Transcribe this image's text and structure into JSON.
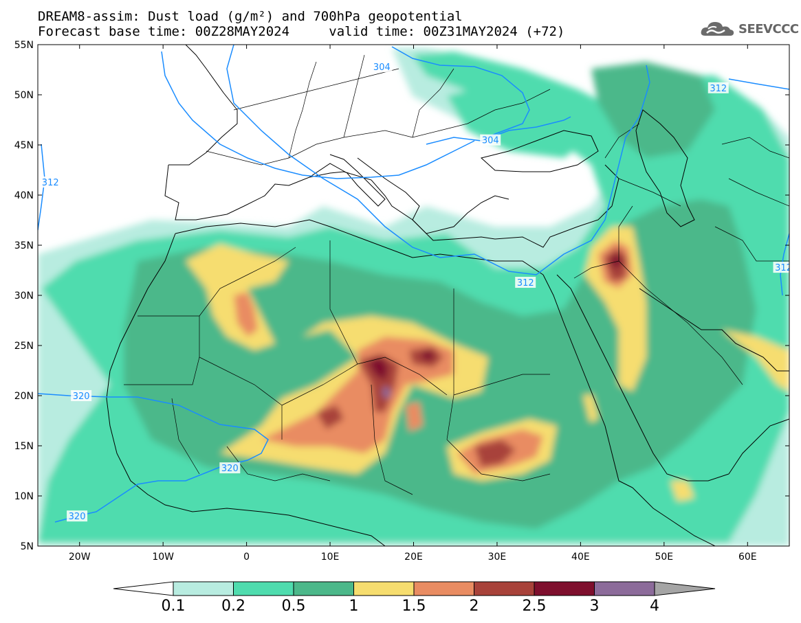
{
  "title": {
    "line1": "DREAM8-assim: Dust load (g/m²) and 700hPa geopotential",
    "line2_left": "Forecast base time: 00Z28MAY2024",
    "line2_right": "valid time: 00Z31MAY2024 (+72)"
  },
  "logo": {
    "text": "SEEVCCC",
    "icon": "cloud-icon"
  },
  "map": {
    "lon_range": [
      -25,
      65
    ],
    "lat_range": [
      5,
      55
    ],
    "lon_ticks": [
      {
        "value": -20,
        "label": "20W"
      },
      {
        "value": -10,
        "label": "10W"
      },
      {
        "value": 0,
        "label": "0"
      },
      {
        "value": 10,
        "label": "10E"
      },
      {
        "value": 20,
        "label": "20E"
      },
      {
        "value": 30,
        "label": "30E"
      },
      {
        "value": 40,
        "label": "40E"
      },
      {
        "value": 50,
        "label": "50E"
      },
      {
        "value": 60,
        "label": "60E"
      }
    ],
    "lat_ticks": [
      {
        "value": 5,
        "label": "5N"
      },
      {
        "value": 10,
        "label": "10N"
      },
      {
        "value": 15,
        "label": "15N"
      },
      {
        "value": 20,
        "label": "20N"
      },
      {
        "value": 25,
        "label": "25N"
      },
      {
        "value": 30,
        "label": "30N"
      },
      {
        "value": 35,
        "label": "35N"
      },
      {
        "value": 40,
        "label": "40N"
      },
      {
        "value": 45,
        "label": "45N"
      },
      {
        "value": 50,
        "label": "50N"
      },
      {
        "value": 55,
        "label": "55N"
      }
    ],
    "contour_labels": [
      {
        "text": "304",
        "lon": 16.2,
        "lat": 52.8
      },
      {
        "text": "304",
        "lon": 29.2,
        "lat": 45.5
      },
      {
        "text": "312",
        "lon": 56.5,
        "lat": 50.7
      },
      {
        "text": "312",
        "lon": -23.5,
        "lat": 41.3
      },
      {
        "text": "312",
        "lon": 33.4,
        "lat": 31.3
      },
      {
        "text": "312",
        "lon": 64.3,
        "lat": 32.8
      },
      {
        "text": "320",
        "lon": -19.8,
        "lat": 20.0
      },
      {
        "text": "320",
        "lon": -2.0,
        "lat": 12.8
      },
      {
        "text": "320",
        "lon": -20.3,
        "lat": 8.0
      }
    ]
  },
  "colorbar": {
    "colors": [
      "#ffffff",
      "#b8ece0",
      "#4fdcae",
      "#4cb88a",
      "#f6dd6f",
      "#e98c62",
      "#a8423a",
      "#7e0f2d",
      "#8c6b9a",
      "#a5a5a5"
    ],
    "labels": [
      "0.1",
      "0.2",
      "0.5",
      "1",
      "1.5",
      "2",
      "2.5",
      "3",
      "4"
    ]
  }
}
